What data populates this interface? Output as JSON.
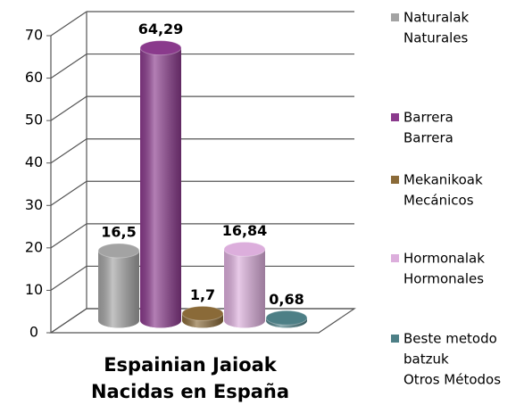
{
  "chart_data": {
    "type": "bar3d",
    "categories": [
      [
        "Espainian Jaioak",
        "Nacidas en España"
      ]
    ],
    "series": [
      {
        "name": [
          "Naturalak",
          "Naturales"
        ],
        "color": "#a3a3a3",
        "values": [
          16.5
        ],
        "value_labels": [
          "16,5"
        ]
      },
      {
        "name": [
          "Barrera",
          "Barrera"
        ],
        "color": "#8a3a8c",
        "values": [
          64.29
        ],
        "value_labels": [
          "64,29"
        ]
      },
      {
        "name": [
          "Mekanikoak",
          "Mecánicos"
        ],
        "color": "#8a6a38",
        "values": [
          1.7
        ],
        "value_labels": [
          "1,7"
        ]
      },
      {
        "name": [
          "Hormonalak",
          "Hormonales"
        ],
        "color": "#dcaedc",
        "values": [
          16.84
        ],
        "value_labels": [
          "16,84"
        ]
      },
      {
        "name": [
          "Beste metodo",
          "batzuk",
          "Otros Métodos"
        ],
        "color": "#4d7f86",
        "values": [
          0.68
        ],
        "value_labels": [
          "0,68"
        ]
      }
    ],
    "ylim": [
      0,
      70
    ],
    "yticks": [
      0,
      10,
      20,
      30,
      40,
      50,
      60,
      70
    ],
    "grid": true,
    "legend": "right"
  }
}
